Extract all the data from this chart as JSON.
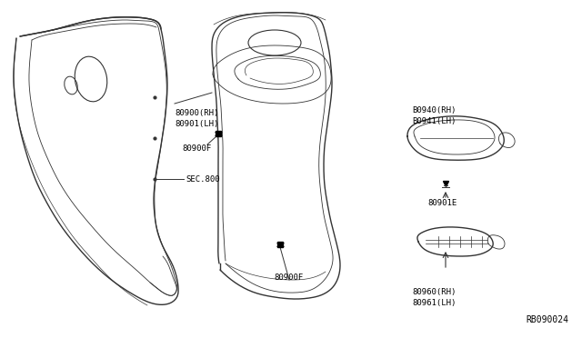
{
  "bg_color": "#ffffff",
  "line_color": "#333333",
  "text_color": "#000000",
  "diagram_code": "RB090024",
  "label_sec800": "SEC.800",
  "label_80900F_top": "80900F",
  "label_80900F_bot": "80900F",
  "label_80900": "80900(RH)\n80901(LH)",
  "label_80960": "80960(RH)\n80961(LH)",
  "label_80901E": "80901E",
  "label_80940": "B0940(RH)\nB0941(LH)"
}
